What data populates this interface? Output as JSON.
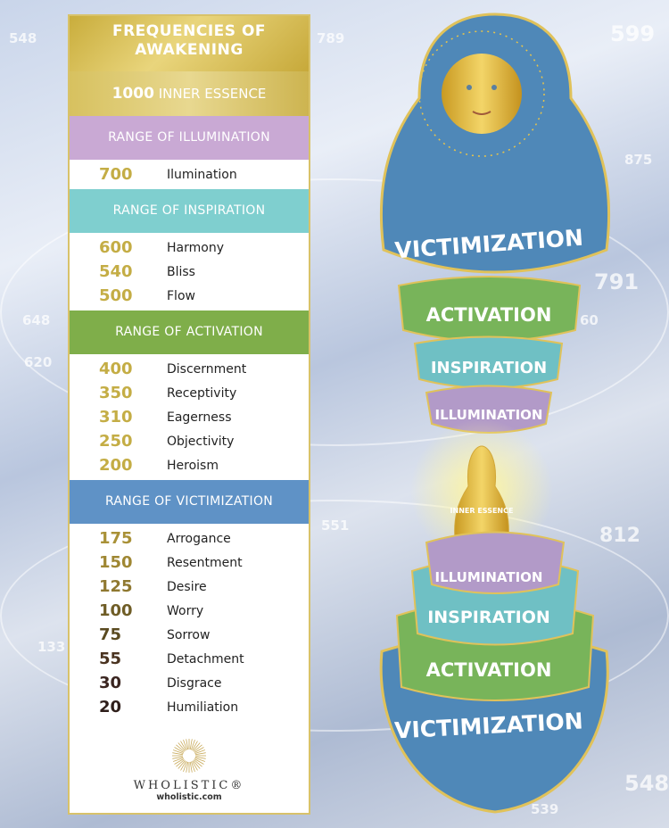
{
  "background_numbers": [
    "548",
    "789",
    "599",
    "875",
    "791",
    "648",
    "60",
    "620",
    "551",
    "812",
    "133",
    "548",
    "539"
  ],
  "panel": {
    "title": "FREQUENCIES OF AWAKENING",
    "inner_essence": {
      "value": "1000",
      "label": "INNER ESSENCE"
    },
    "ranges": [
      {
        "header": "RANGE OF ILLUMINATION",
        "color": "#c9a9d4",
        "items": [
          {
            "value": "700",
            "label": "Ilumination"
          }
        ]
      },
      {
        "header": "RANGE OF INSPIRATION",
        "color": "#7fcfcf",
        "items": [
          {
            "value": "600",
            "label": "Harmony"
          },
          {
            "value": "540",
            "label": "Bliss"
          },
          {
            "value": "500",
            "label": "Flow"
          }
        ]
      },
      {
        "header": "RANGE OF ACTIVATION",
        "color": "#7fae4a",
        "items": [
          {
            "value": "400",
            "label": "Discernment"
          },
          {
            "value": "350",
            "label": "Receptivity"
          },
          {
            "value": "310",
            "label": "Eagerness"
          },
          {
            "value": "250",
            "label": "Objectivity"
          },
          {
            "value": "200",
            "label": "Heroism"
          }
        ]
      },
      {
        "header": "RANGE OF VICTIMIZATION",
        "color": "#5f92c6",
        "items": [
          {
            "value": "175",
            "label": "Arrogance"
          },
          {
            "value": "150",
            "label": "Resentment"
          },
          {
            "value": "125",
            "label": "Desire"
          },
          {
            "value": "100",
            "label": "Worry"
          },
          {
            "value": "75",
            "label": "Sorrow"
          },
          {
            "value": "55",
            "label": "Detachment"
          },
          {
            "value": "30",
            "label": "Disgrace"
          },
          {
            "value": "20",
            "label": "Humiliation"
          }
        ]
      }
    ],
    "logo": {
      "brand": "WHOLISTIC®",
      "url": "wholistic.com"
    }
  },
  "doll": {
    "top": {
      "victimization": "VICTIMIZATION",
      "activation": "ACTIVATION",
      "inspiration": "INSPIRATION",
      "illumination": "ILLUMINATION"
    },
    "inner": "INNER ESSENCE",
    "bottom": {
      "illumination": "ILLUMINATION",
      "inspiration": "INSPIRATION",
      "activation": "ACTIVATION",
      "victimization": "VICTIMIZATION"
    }
  }
}
